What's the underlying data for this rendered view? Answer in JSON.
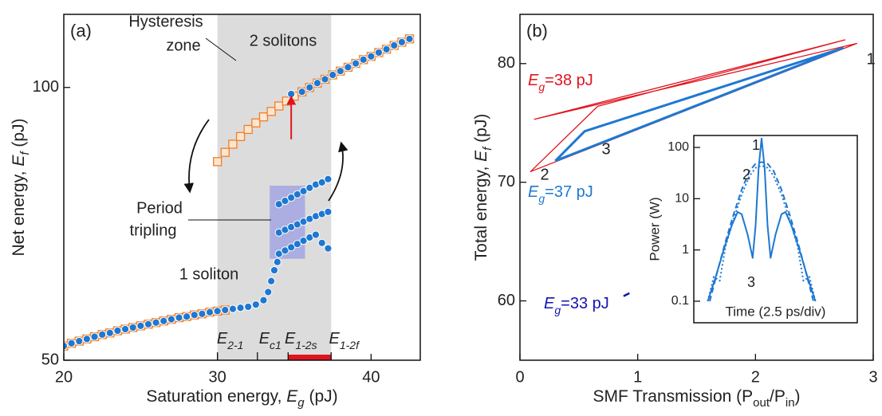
{
  "chart_data": [
    {
      "type": "scatter",
      "panel_label": "(a)",
      "xlabel": [
        "Saturation energy, ",
        "E",
        "g",
        " (pJ)"
      ],
      "ylabel": [
        "Net energy, ",
        "E",
        "f",
        " (pJ)"
      ],
      "xlim": [
        20,
        43.2
      ],
      "ylim": [
        50,
        113.4
      ],
      "xticks": [
        20,
        30,
        40
      ],
      "yticks": [
        50,
        100
      ],
      "shaded_x": [
        30,
        37.4
      ],
      "shade_color": "#dcdcdc",
      "highlight_x": [
        34.6,
        37.4
      ],
      "highlight_color": "#e0141e",
      "xmarkers": [
        {
          "value": 30,
          "label": [
            "E",
            "2-1"
          ]
        },
        {
          "value": 32.6,
          "label": [
            "E",
            "c1"
          ]
        },
        {
          "value": 34.6,
          "label": [
            "E",
            "1-2s"
          ]
        },
        {
          "value": 37.4,
          "label": [
            "E",
            "1-2f"
          ]
        }
      ],
      "box": {
        "x": [
          33.4,
          35.7
        ],
        "y": [
          68.6,
          82
        ],
        "color": "#a3a4e0"
      },
      "arrow": {
        "x": 34.8,
        "y": [
          90.5,
          98.8
        ],
        "color": "#e0141e"
      },
      "annotations": [
        "Hysteresis",
        "zone",
        "2 solitons",
        "Period",
        "tripling",
        "1 soliton"
      ],
      "series": [
        {
          "marker": "square",
          "color": "#f07f28",
          "x": [
            20,
            20.5,
            21,
            21.5,
            22,
            22.5,
            23,
            23.5,
            24,
            24.5,
            25,
            25.5,
            26,
            26.5,
            27,
            27.5,
            28,
            28.5,
            29,
            29.5,
            30,
            30.5
          ],
          "values": [
            52.6,
            53.1,
            53.5,
            53.9,
            54.3,
            54.7,
            55.0,
            55.4,
            55.7,
            56.0,
            56.3,
            56.6,
            56.9,
            57.2,
            57.5,
            57.8,
            58.0,
            58.3,
            58.5,
            58.8,
            59.0,
            59.2
          ]
        },
        {
          "marker": "square",
          "color": "#f07f28",
          "x": [
            30,
            30.5,
            31,
            31.5,
            32,
            32.5,
            33,
            33.5,
            34,
            34.5,
            35,
            35.5,
            36,
            36.5,
            37,
            37.5,
            38,
            38.5,
            39,
            39.5,
            40,
            40.5,
            41,
            41.5,
            42,
            42.5
          ],
          "values": [
            86.4,
            88.1,
            89.6,
            91.0,
            92.3,
            93.5,
            94.6,
            95.6,
            96.6,
            97.5,
            98.4,
            99.2,
            100.0,
            100.8,
            101.5,
            102.3,
            103.0,
            103.7,
            104.4,
            105.1,
            105.7,
            106.4,
            107.0,
            107.7,
            108.3,
            108.9
          ]
        },
        {
          "marker": "circle",
          "color": "#1e78d2",
          "x": [
            20,
            20.5,
            21,
            21.5,
            22,
            22.5,
            23,
            23.5,
            24,
            24.5,
            25,
            25.5,
            26,
            26.5,
            27,
            27.5,
            28,
            28.5,
            29,
            29.5,
            30,
            30.5,
            31,
            31.5,
            32,
            32.5,
            33,
            33.3,
            33.5,
            33.7,
            33.9
          ],
          "values": [
            52.6,
            53.1,
            53.5,
            53.9,
            54.3,
            54.7,
            55.0,
            55.4,
            55.7,
            56.0,
            56.3,
            56.6,
            56.9,
            57.2,
            57.5,
            57.8,
            58.0,
            58.3,
            58.5,
            58.8,
            59.0,
            59.2,
            59.4,
            59.6,
            59.8,
            60.2,
            61.0,
            62.5,
            64.5,
            66.5,
            68.0
          ]
        },
        {
          "marker": "circle",
          "color": "#1e78d2",
          "x": [
            34.0,
            34.4,
            34.8,
            35.2,
            35.6,
            36.0,
            36.4,
            36.8,
            37.2
          ],
          "values": [
            78.6,
            79.2,
            79.8,
            80.4,
            81.0,
            81.6,
            82.2,
            82.6,
            83.2
          ]
        },
        {
          "marker": "circle",
          "color": "#1e78d2",
          "x": [
            34.0,
            34.4,
            34.8,
            35.2,
            35.6,
            36.0,
            36.4,
            36.8,
            37.2
          ],
          "values": [
            73.4,
            73.9,
            74.4,
            74.9,
            75.4,
            75.9,
            76.4,
            76.8,
            77.2
          ]
        },
        {
          "marker": "circle",
          "color": "#1e78d2",
          "x": [
            34.0,
            34.4,
            34.8,
            35.2,
            35.6,
            36.0,
            36.4,
            36.8,
            37.2
          ],
          "values": [
            69.5,
            70.1,
            70.7,
            71.3,
            71.9,
            72.5,
            73.0,
            71.5,
            70.5
          ]
        },
        {
          "marker": "circle",
          "color": "#1e78d2",
          "x": [
            34.8,
            35.5,
            36,
            36.5,
            37,
            37.5,
            38,
            38.5,
            39,
            39.5,
            40,
            40.5,
            41,
            41.5,
            42,
            42.5
          ],
          "values": [
            98.8,
            99.2,
            100.0,
            100.8,
            101.5,
            102.3,
            103.0,
            103.7,
            104.4,
            105.1,
            105.7,
            106.4,
            107.0,
            107.7,
            108.3,
            108.9
          ]
        }
      ]
    },
    {
      "type": "line",
      "panel_label": "(b)",
      "xlabel": [
        "SMF Transmission (P",
        "out",
        "/P",
        "in",
        ")"
      ],
      "ylabel": [
        "Total energy, ",
        "E",
        "f",
        " (pJ)"
      ],
      "xlim": [
        0,
        3
      ],
      "ylim": [
        55,
        84.15
      ],
      "xticks": [
        0,
        1,
        2,
        3
      ],
      "yticks": [
        60,
        70,
        80
      ],
      "point_labels": [
        "1",
        "2",
        "3"
      ],
      "series": [
        {
          "color": "#e0141e",
          "width": 1.3,
          "label": [
            "E",
            "g",
            "=38 pJ"
          ],
          "x": [
            0.12,
            2.76,
            0.66,
            0.09,
            2.86,
            0.12
          ],
          "values": [
            75.3,
            82.0,
            76.4,
            70.9,
            81.7,
            75.3
          ]
        },
        {
          "color": "#1e78d2",
          "width": 3,
          "label": [
            "E",
            "g",
            "=37 pJ"
          ],
          "x": [
            0.3,
            2.74,
            0.55,
            0.3
          ],
          "values": [
            71.8,
            81.3,
            74.3,
            71.8
          ]
        },
        {
          "color": "#1414b4",
          "width": 2.5,
          "label": [
            "E",
            "g",
            "=33 pJ"
          ],
          "x": [
            0.88,
            0.93
          ],
          "values": [
            60.4,
            60.65
          ]
        }
      ]
    },
    {
      "type": "line",
      "log_y": true,
      "xlabel": "Time (2.5 ps/div)",
      "ylabel": "Power (W)",
      "xlim": [
        -3.4,
        4.8
      ],
      "ylim": [
        0.038,
        171
      ],
      "yticks": [
        0.1,
        1,
        10,
        100
      ],
      "curve_labels": [
        "1",
        "2",
        "3"
      ],
      "series": [
        {
          "color": "#1e78d2",
          "dash": "solid",
          "x": [
            -2.7,
            -2.3,
            -1.9,
            -1.5,
            -1.2,
            -1.0,
            -0.7,
            -0.45,
            -0.3,
            -0.15,
            0,
            0.15,
            0.3,
            0.45,
            0.7,
            1.0,
            1.2,
            1.5,
            1.9,
            2.3,
            2.7
          ],
          "values": [
            0.1,
            0.3,
            1,
            3,
            5.5,
            5,
            2,
            0.7,
            3,
            40,
            150,
            40,
            3,
            0.7,
            2,
            5,
            5.5,
            3,
            1,
            0.3,
            0.1
          ]
        },
        {
          "color": "#1e78d2",
          "dash": "dashed",
          "x": [
            -2.6,
            -2.2,
            -1.8,
            -1.4,
            -1,
            -0.6,
            -0.3,
            0,
            0.3,
            0.6,
            1,
            1.4,
            1.8,
            2.2,
            2.6
          ],
          "values": [
            0.1,
            0.4,
            1.5,
            5,
            15,
            35,
            48,
            52,
            48,
            35,
            15,
            5,
            1.5,
            0.4,
            0.1
          ]
        },
        {
          "color": "#1e78d2",
          "dash": "dotted",
          "x": [
            -2.7,
            -2.4,
            -2.1,
            -1.8,
            -1.4,
            -1.0,
            -0.6,
            -0.3,
            0,
            0.3,
            0.6,
            1.0,
            1.4,
            1.8,
            2.1,
            2.4,
            2.7
          ],
          "values": [
            0.1,
            0.3,
            0.25,
            1.2,
            4,
            12,
            28,
            40,
            44,
            40,
            28,
            12,
            4,
            1.2,
            0.25,
            0.3,
            0.1
          ]
        }
      ]
    }
  ]
}
